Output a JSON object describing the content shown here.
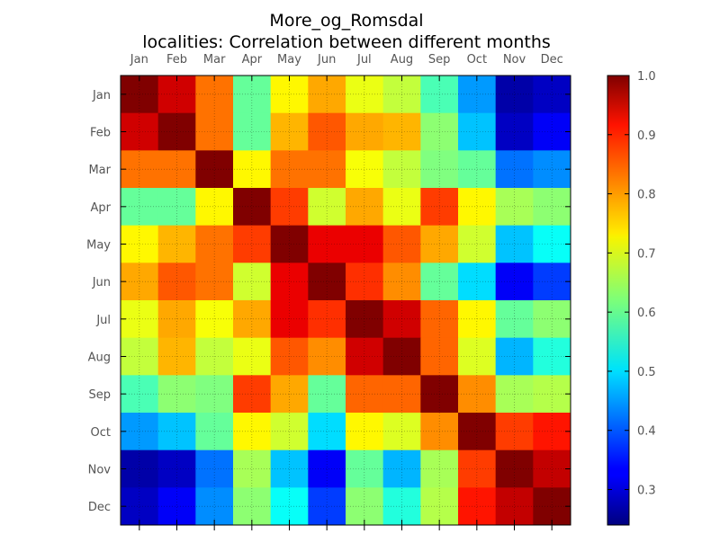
{
  "chart_data": {
    "type": "heatmap",
    "title_line1": "More_og_Romsdal",
    "title_line2": "localities: Correlation between different months",
    "x_categories": [
      "Jan",
      "Feb",
      "Mar",
      "Apr",
      "May",
      "Jun",
      "Jul",
      "Aug",
      "Sep",
      "Oct",
      "Nov",
      "Dec"
    ],
    "y_categories": [
      "Jan",
      "Feb",
      "Mar",
      "Apr",
      "May",
      "Jun",
      "Jul",
      "Aug",
      "Sep",
      "Oct",
      "Nov",
      "Dec"
    ],
    "colormap": "jet",
    "value_range": [
      0.24,
      1.0
    ],
    "colorbar_ticks": [
      "0.3",
      "0.4",
      "0.5",
      "0.6",
      "0.7",
      "0.8",
      "0.9",
      "1.0"
    ],
    "grid": true,
    "matrix": [
      [
        1.0,
        0.94,
        0.82,
        0.6,
        0.72,
        0.78,
        0.7,
        0.67,
        0.58,
        0.45,
        0.27,
        0.29
      ],
      [
        0.94,
        1.0,
        0.82,
        0.6,
        0.77,
        0.84,
        0.78,
        0.77,
        0.63,
        0.48,
        0.29,
        0.33
      ],
      [
        0.82,
        0.82,
        1.0,
        0.72,
        0.82,
        0.82,
        0.71,
        0.67,
        0.62,
        0.6,
        0.42,
        0.44
      ],
      [
        0.6,
        0.6,
        0.72,
        1.0,
        0.86,
        0.68,
        0.78,
        0.7,
        0.86,
        0.72,
        0.65,
        0.63
      ],
      [
        0.72,
        0.77,
        0.82,
        0.86,
        1.0,
        0.92,
        0.92,
        0.84,
        0.78,
        0.68,
        0.48,
        0.53
      ],
      [
        0.78,
        0.84,
        0.82,
        0.68,
        0.92,
        1.0,
        0.87,
        0.8,
        0.6,
        0.5,
        0.33,
        0.38
      ],
      [
        0.7,
        0.78,
        0.71,
        0.78,
        0.92,
        0.87,
        1.0,
        0.94,
        0.83,
        0.72,
        0.6,
        0.63
      ],
      [
        0.67,
        0.77,
        0.67,
        0.7,
        0.84,
        0.8,
        0.94,
        1.0,
        0.83,
        0.69,
        0.47,
        0.55
      ],
      [
        0.58,
        0.63,
        0.62,
        0.86,
        0.78,
        0.6,
        0.83,
        0.83,
        1.0,
        0.8,
        0.65,
        0.66
      ],
      [
        0.45,
        0.48,
        0.6,
        0.72,
        0.68,
        0.5,
        0.72,
        0.69,
        0.8,
        1.0,
        0.86,
        0.89
      ],
      [
        0.27,
        0.29,
        0.42,
        0.65,
        0.48,
        0.33,
        0.6,
        0.47,
        0.65,
        0.86,
        1.0,
        0.95
      ],
      [
        0.29,
        0.33,
        0.44,
        0.63,
        0.53,
        0.38,
        0.63,
        0.55,
        0.66,
        0.89,
        0.95,
        1.0
      ]
    ]
  }
}
